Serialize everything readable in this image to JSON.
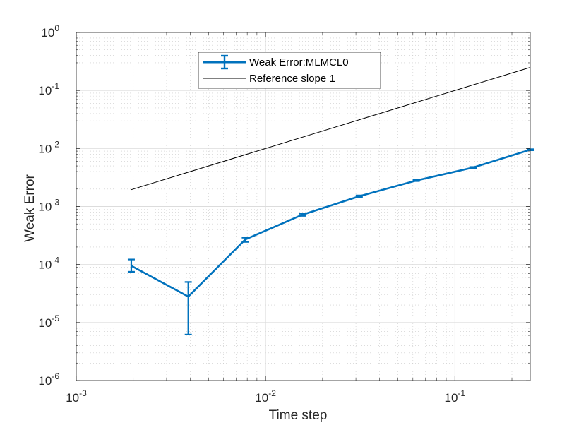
{
  "chart_data": {
    "type": "line",
    "title": "",
    "xlabel": "Time step",
    "ylabel": "Weak Error",
    "x_scale": "log",
    "y_scale": "log",
    "xlim": [
      0.001,
      0.25
    ],
    "ylim": [
      1e-06,
      1
    ],
    "x_ticks": [
      {
        "value": 0.001,
        "base": "10",
        "exp": "-3"
      },
      {
        "value": 0.01,
        "base": "10",
        "exp": "-2"
      },
      {
        "value": 0.1,
        "base": "10",
        "exp": "-1"
      }
    ],
    "y_ticks": [
      {
        "value": 1e-06,
        "base": "10",
        "exp": "-6"
      },
      {
        "value": 1e-05,
        "base": "10",
        "exp": "-5"
      },
      {
        "value": 0.0001,
        "base": "10",
        "exp": "-4"
      },
      {
        "value": 0.001,
        "base": "10",
        "exp": "-3"
      },
      {
        "value": 0.01,
        "base": "10",
        "exp": "-2"
      },
      {
        "value": 0.1,
        "base": "10",
        "exp": "-1"
      },
      {
        "value": 1,
        "base": "10",
        "exp": "0"
      }
    ],
    "grid": true,
    "minor_grid": true,
    "legend_position": "top-center",
    "series": [
      {
        "name": "Weak Error:MLMCL0",
        "type": "errorbar",
        "color": "#0072BD",
        "x": [
          0.001953125,
          0.00390625,
          0.0078125,
          0.015625,
          0.03125,
          0.0625,
          0.125,
          0.25
        ],
        "y": [
          9.5e-05,
          2.8e-05,
          0.00027,
          0.00072,
          0.0015,
          0.0028,
          0.0047,
          0.0095
        ],
        "y_low": [
          7.5e-05,
          6.2e-06,
          0.000245,
          0.00069,
          0.00146,
          0.00274,
          0.0046,
          0.0093
        ],
        "y_high": [
          0.000122,
          5e-05,
          0.00029,
          0.00075,
          0.00155,
          0.00287,
          0.0048,
          0.0097
        ]
      },
      {
        "name": "Reference slope 1",
        "type": "line",
        "color": "#000000",
        "x": [
          0.001953125,
          0.25
        ],
        "y": [
          0.00195,
          0.25
        ]
      }
    ]
  }
}
